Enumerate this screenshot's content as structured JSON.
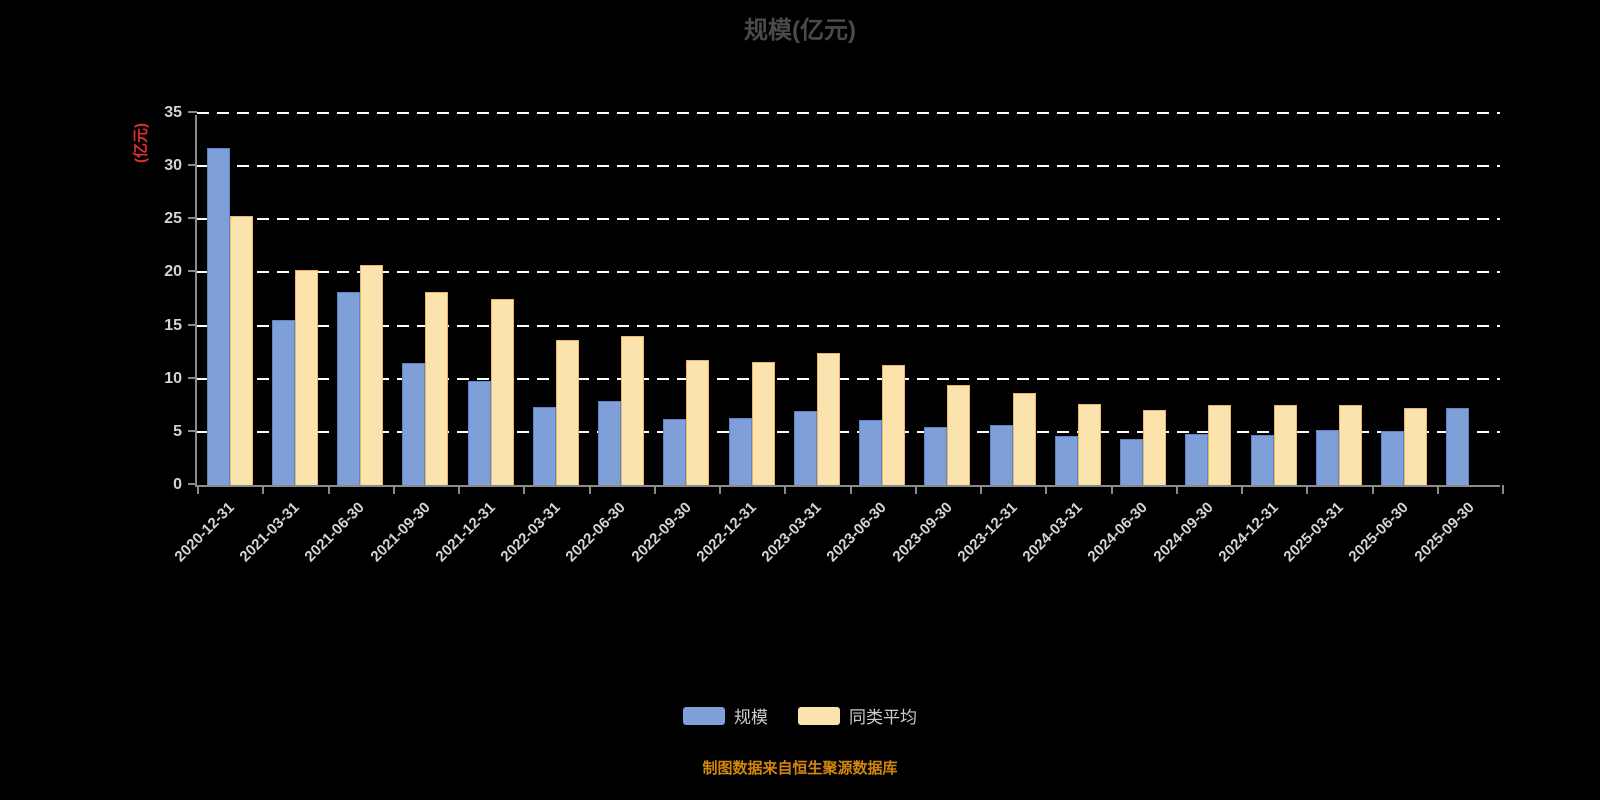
{
  "title": "规模(亿元)",
  "source": "制图数据来自恒生聚源数据库",
  "colors": {
    "background": "#000000",
    "title_color": "#4a4a4a",
    "y_axis_name_color": "#e03030",
    "source_color": "#D4860B",
    "axis": "#8a8a8a",
    "grid": "#ffffff",
    "tick_label": "#d4d4d4",
    "bar_scale_fill": "#7E9FD8",
    "bar_scale_border": "#5C84C6",
    "bar_avg_fill": "#FAE3AC",
    "bar_avg_border": "#EFB566"
  },
  "legend": {
    "items": [
      {
        "label": "规模"
      },
      {
        "label": "同类平均"
      }
    ]
  },
  "chart_data": {
    "type": "bar",
    "title": "规模(亿元)",
    "xlabel": "",
    "ylabel": "(亿元)",
    "ylim": [
      0,
      35
    ],
    "ytick_interval": 5,
    "grid": "horizontal-dashed",
    "legend_position": "bottom",
    "categories": [
      "2020-12-31",
      "2021-03-31",
      "2021-06-30",
      "2021-09-30",
      "2021-12-31",
      "2022-03-31",
      "2022-06-30",
      "2022-09-30",
      "2022-12-31",
      "2023-03-31",
      "2023-06-30",
      "2023-09-30",
      "2023-12-31",
      "2024-03-31",
      "2024-06-30",
      "2024-09-30",
      "2024-12-31",
      "2025-03-31",
      "2025-06-30",
      "2025-09-30"
    ],
    "series": [
      {
        "name": "规模",
        "values": [
          31.7,
          15.5,
          18.2,
          11.5,
          9.8,
          7.3,
          7.9,
          6.2,
          6.3,
          7.0,
          6.1,
          5.5,
          5.6,
          4.6,
          4.3,
          4.8,
          4.7,
          5.2,
          5.1,
          7.2
        ]
      },
      {
        "name": "同类平均",
        "values": [
          25.3,
          20.2,
          20.7,
          18.2,
          17.5,
          13.6,
          14.0,
          11.8,
          11.6,
          12.4,
          11.3,
          9.4,
          8.7,
          7.6,
          7.1,
          7.5,
          7.5,
          7.5,
          7.2,
          null
        ]
      }
    ]
  }
}
